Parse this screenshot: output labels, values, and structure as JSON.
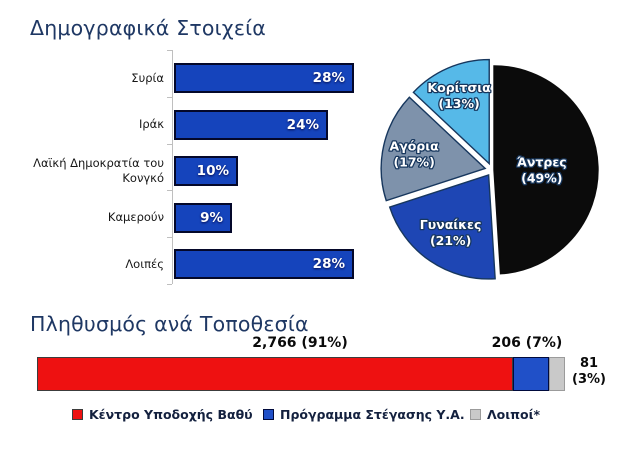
{
  "chart_data": [
    {
      "id": "nationalities",
      "type": "bar",
      "orientation": "horizontal",
      "title": "Δημογραφικά Στοιχεία",
      "categories": [
        "Συρία",
        "Ιράκ",
        "Λαϊκή Δημοκρατία του Κονγκό",
        "Καμερούν",
        "Λοιπές"
      ],
      "values": [
        28,
        24,
        10,
        9,
        28
      ],
      "value_labels": [
        "28%",
        "24%",
        "10%",
        "9%",
        "28%"
      ],
      "xlim": [
        0,
        30
      ],
      "grid": false,
      "bar_color": "#1544BC",
      "bar_border_color": "#04082A"
    },
    {
      "id": "gender-age",
      "type": "pie",
      "direction": "clockwise",
      "start_angle_deg": 0,
      "label_color": "#FFFFFF",
      "label_outline_color": "#17375E",
      "slices": [
        {
          "label": "Άντρες",
          "value": 49,
          "value_label": "(49%)",
          "color": "#0B0B0B",
          "explode": 2,
          "label_r": 0.46
        },
        {
          "label": "Γυναίκες",
          "value": 21,
          "value_label": "(21%)",
          "color": "#1E46B4",
          "explode": 6,
          "label_r": 0.65
        },
        {
          "label": "Αγόρια",
          "value": 17,
          "value_label": "(17%)",
          "color": "#7E92AB",
          "explode": 7,
          "label_r": 0.7
        },
        {
          "label": "Κορίτσια",
          "value": 13,
          "value_label": "(13%)",
          "color": "#56B9E8",
          "explode": 7,
          "label_r": 0.73
        }
      ]
    },
    {
      "id": "population-by-location",
      "type": "stacked_bar",
      "title": "Πληθυσμός ανά Τοποθεσία",
      "legend_position": "bottom",
      "segments": [
        {
          "label": "Κέντρο Υποδοχής Βαθύ",
          "value": 2766,
          "value_text": "2,766",
          "pct": 91,
          "pct_text": "(91%)",
          "color": "#EE1111",
          "border_color": "#3C3C3C"
        },
        {
          "label": "Πρόγραμμα Στέγασης Υ.Α.",
          "value": 206,
          "value_text": "206",
          "pct": 7,
          "pct_text": "(7%)",
          "color": "#2050C8",
          "border_color": "#000A3C"
        },
        {
          "label": "Λοιποί*",
          "value": 81,
          "value_text": "81",
          "pct": 3,
          "pct_text": "(3%)",
          "color": "#C9C9C9",
          "border_color": "#9B9B9B"
        }
      ]
    }
  ]
}
